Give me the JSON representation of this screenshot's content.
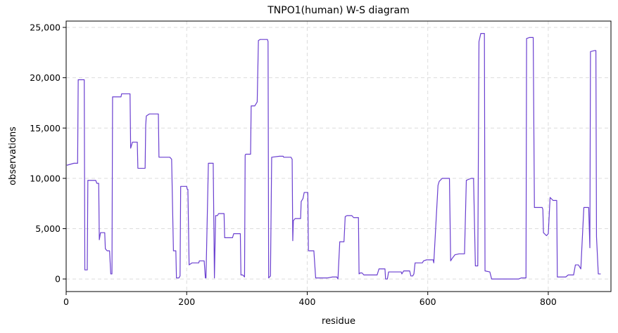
{
  "chart_data": {
    "type": "line",
    "title": "TNPO1(human) W-S diagram",
    "xlabel": "residue",
    "ylabel": "observations",
    "color": "#6a3fd0",
    "grid": true,
    "xlim": [
      0,
      904
    ],
    "ylim": [
      -1250,
      25630
    ],
    "xticks": [
      0,
      200,
      400,
      600,
      800
    ],
    "yticks": [
      0,
      {
        "value": 5000,
        "label": "5,000"
      },
      {
        "value": 10000,
        "label": "10,000"
      },
      {
        "value": 15000,
        "label": "15,000"
      },
      {
        "value": 20000,
        "label": "20,000"
      },
      {
        "value": 25000,
        "label": "25,000"
      }
    ],
    "x": [
      1,
      13,
      19,
      20,
      30,
      31,
      35,
      36,
      49,
      51,
      54,
      55,
      57,
      64,
      65,
      68,
      72,
      74,
      76,
      77,
      91,
      92,
      106,
      107,
      110,
      118,
      119,
      131,
      132,
      133,
      138,
      153,
      154,
      172,
      175,
      178,
      182,
      183,
      187,
      189,
      190,
      200,
      201,
      202,
      204,
      209,
      220,
      221,
      229,
      231,
      232,
      236,
      244,
      246,
      248,
      251,
      253,
      262,
      263,
      276,
      278,
      289,
      290,
      293,
      296,
      297,
      298,
      306,
      307,
      313,
      317,
      319,
      322,
      334,
      335,
      336,
      339,
      341,
      354,
      360,
      361,
      373,
      375,
      376,
      377,
      380,
      389,
      390,
      393,
      395,
      401,
      402,
      411,
      414,
      433,
      442,
      449,
      451,
      454,
      461,
      463,
      466,
      474,
      477,
      485,
      486,
      488,
      491,
      494,
      516,
      519,
      529,
      530,
      533,
      535,
      556,
      557,
      560,
      570,
      572,
      575,
      577,
      579,
      591,
      593,
      598,
      609,
      610,
      617,
      619,
      624,
      636,
      638,
      640,
      645,
      652,
      661,
      664,
      672,
      676,
      679,
      683,
      685,
      688,
      694,
      695,
      703,
      706,
      751,
      755,
      763,
      764,
      769,
      775,
      777,
      790,
      791,
      792,
      797,
      800,
      803,
      808,
      814,
      815,
      829,
      833,
      842,
      845,
      850,
      854,
      859,
      867,
      869,
      870,
      877,
      879,
      880,
      883,
      887
    ],
    "values": [
      11300,
      11500,
      11500,
      19800,
      19800,
      900,
      900,
      9800,
      9800,
      9500,
      9500,
      3900,
      4600,
      4600,
      3000,
      2800,
      2800,
      500,
      500,
      18100,
      18100,
      18400,
      18400,
      13000,
      13600,
      13600,
      11000,
      11000,
      15300,
      16200,
      16400,
      16400,
      12100,
      12100,
      11900,
      2800,
      2800,
      100,
      100,
      300,
      9200,
      9200,
      8900,
      8900,
      1400,
      1600,
      1600,
      1800,
      1800,
      100,
      100,
      11500,
      11500,
      100,
      6300,
      6300,
      6500,
      6500,
      4100,
      4100,
      4500,
      4500,
      400,
      400,
      200,
      12300,
      12400,
      12400,
      17200,
      17200,
      17600,
      23700,
      23800,
      23800,
      23600,
      100,
      300,
      12100,
      12200,
      12200,
      12100,
      12100,
      11900,
      3800,
      5800,
      6000,
      6000,
      7700,
      8000,
      8600,
      8600,
      2800,
      2800,
      100,
      100,
      200,
      200,
      0,
      3700,
      3700,
      6200,
      6300,
      6300,
      6100,
      6100,
      500,
      600,
      600,
      400,
      400,
      1000,
      1000,
      0,
      0,
      700,
      700,
      500,
      800,
      800,
      300,
      300,
      500,
      1600,
      1600,
      1800,
      1900,
      1900,
      1600,
      9300,
      9700,
      10000,
      10000,
      1800,
      2000,
      2400,
      2500,
      2500,
      9800,
      10000,
      10000,
      1300,
      1300,
      23600,
      24400,
      24400,
      800,
      700,
      0,
      0,
      100,
      100,
      23900,
      24000,
      24000,
      7100,
      7100,
      6900,
      4600,
      4300,
      4500,
      8100,
      7800,
      7800,
      200,
      200,
      400,
      400,
      1400,
      1400,
      1000,
      7100,
      7100,
      3100,
      22600,
      22700,
      22700,
      4200,
      500,
      500
    ]
  }
}
